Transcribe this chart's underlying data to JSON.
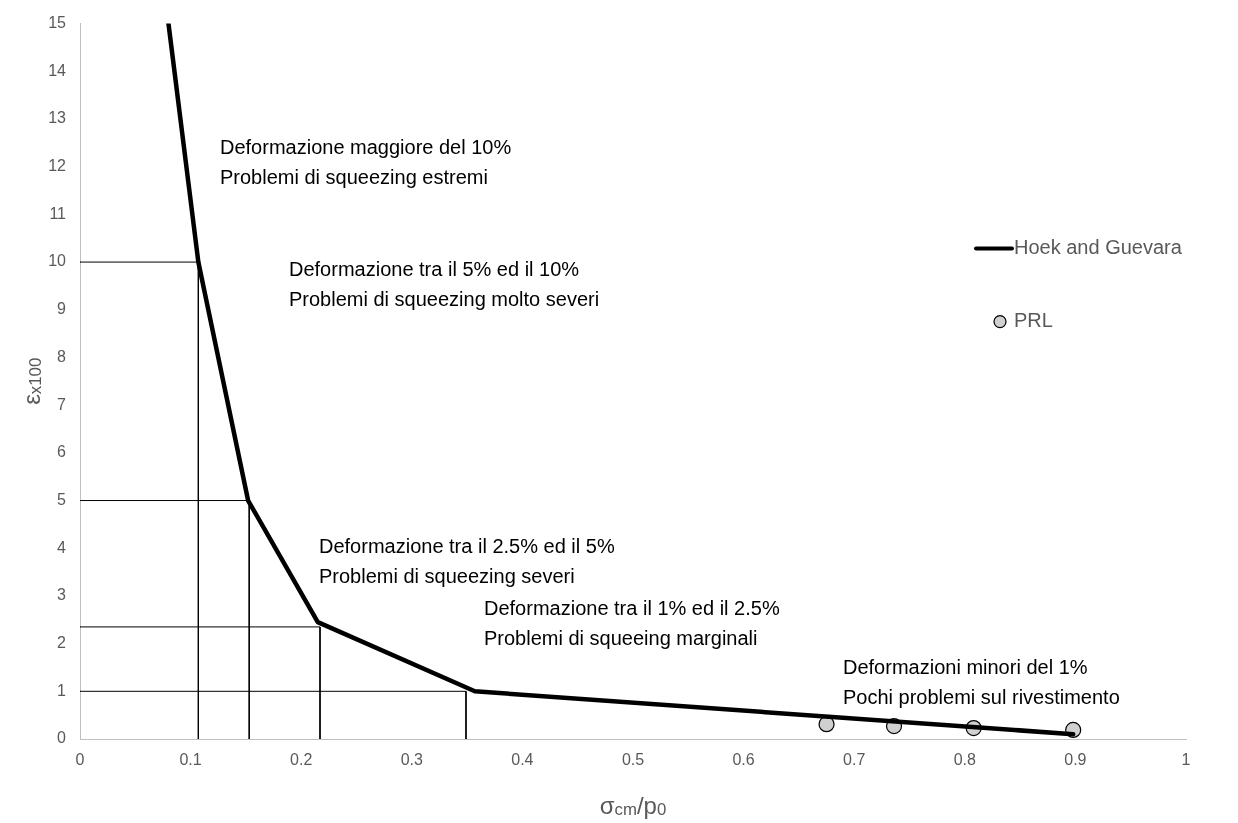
{
  "chart_data": {
    "type": "line",
    "xlabel": "σ$_{cm}$/p$_{0}$",
    "ylabel": "ε$_{x100}$",
    "xlim": [
      0,
      1
    ],
    "xticks": [
      0,
      0.1,
      0.2,
      0.3,
      0.4,
      0.5,
      0.6,
      0.7,
      0.8,
      0.9,
      1
    ],
    "ylim": [
      0,
      15
    ],
    "yticks": [
      0,
      1,
      2,
      3,
      4,
      5,
      6,
      7,
      8,
      9,
      10,
      11,
      12,
      13,
      14,
      15
    ],
    "grid": false,
    "legend": "right",
    "series": [
      {
        "name": "Hoek and Guevara",
        "color": "#000000",
        "marker": "none",
        "x": [
          0.08,
          0.107,
          0.152,
          0.215,
          0.357,
          0.898
        ],
        "values": [
          15,
          10,
          5,
          2.45,
          1,
          0.1
        ]
      },
      {
        "name": "PRL",
        "type": "scatter",
        "color": "#d0d0d0",
        "marker": "circle",
        "x": [
          0.675,
          0.736,
          0.808,
          0.898
        ],
        "values": [
          0.31,
          0.27,
          0.23,
          0.19
        ]
      },
      {
        "color": "#000000",
        "marker": "none",
        "x": [
          0,
          0.107,
          0.107
        ],
        "values": [
          10,
          10,
          0
        ]
      },
      {
        "color": "#000000",
        "marker": "none",
        "x": [
          0,
          0.153,
          0.153
        ],
        "values": [
          5,
          5,
          0
        ]
      },
      {
        "color": "#000000",
        "marker": "none",
        "x": [
          0,
          0.217,
          0.217
        ],
        "values": [
          2.35,
          2.35,
          0
        ]
      },
      {
        "color": "#000000",
        "marker": "none",
        "x": [
          0,
          0.349,
          0.349
        ],
        "values": [
          1,
          1,
          0
        ]
      }
    ],
    "annotations": [
      "Deformazione maggiore del 10%\nProblemi di squeezing estremi",
      "Deformazione tra il 5% ed il 10%\nProblemi di squeezing molto severi",
      "Deformazione tra il 2.5% ed il 5%\nProblemi di squeezing severi",
      "Deformazione tra il 1% ed il 2.5%\nProblemi di squeeing marginali",
      "Deformazioni minori del 1%\nPochi problemi sul rivestimento"
    ]
  }
}
